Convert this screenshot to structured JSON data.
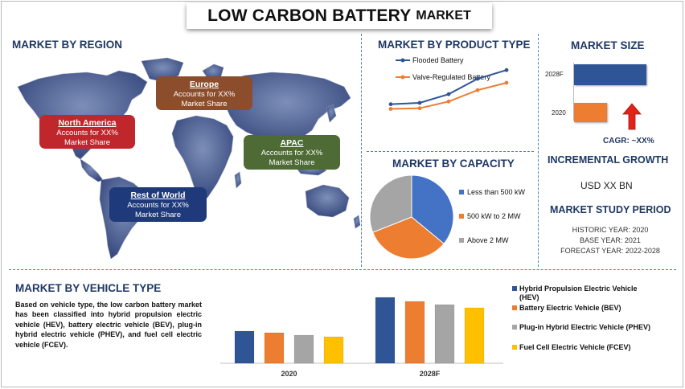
{
  "title": {
    "main": "LOW CARBON BATTERY",
    "sub": "MARKET"
  },
  "region": {
    "heading": "MARKET BY REGION",
    "boxes": [
      {
        "name": "Europe",
        "line1": "Accounts for XX%",
        "line2": "Market Share",
        "color": "#8b4d2b"
      },
      {
        "name": "North America",
        "line1": "Accounts for XX%",
        "line2": "Market Share",
        "color": "#c0272d"
      },
      {
        "name": "APAC",
        "line1": "Accounts for XX%",
        "line2": "Market Share",
        "color": "#4e6b35"
      },
      {
        "name": "Rest of World",
        "line1": "Accounts for XX%",
        "line2": "Market Share",
        "color": "#1f3a7a"
      }
    ]
  },
  "product": {
    "heading": "MARKET BY PRODUCT TYPE",
    "legend": [
      "Flooded Battery",
      "Valve-Regulated Battery"
    ]
  },
  "capacity": {
    "heading": "MARKET BY CAPACITY",
    "legend": [
      "Less than 500 kW",
      "500 kW to 2 MW",
      "Above 2 MW"
    ]
  },
  "size": {
    "heading": "MARKET SIZE",
    "label_2028": "2028F",
    "label_2020": "2020",
    "cagr": "CAGR:  ~XX%"
  },
  "growth": {
    "heading": "INCREMENTAL GROWTH",
    "value": "USD XX BN"
  },
  "study": {
    "heading": "MARKET STUDY PERIOD",
    "historic": "HISTORIC YEAR: 2020",
    "base": "BASE YEAR: 2021",
    "forecast": "FORECAST YEAR: 2022-2028"
  },
  "vehicle": {
    "heading": "MARKET BY VEHICLE TYPE",
    "paragraph": "Based on vehicle type, the low carbon battery market has been classified into hybrid propulsion electric vehicle (HEV), battery electric vehicle (BEV), plug-in hybrid electric vehicle (PHEV), and fuel cell electric vehicle (FCEV).",
    "legend": [
      "Hybrid Propulsion Electric Vehicle (HEV)",
      "Battery Electric Vehicle (BEV)",
      "Plug-in Hybrid Electric Vehicle (PHEV)",
      "Fuel Cell Electric Vehicle (FCEV)"
    ]
  },
  "chart_data": [
    {
      "type": "line",
      "x": [
        1,
        2,
        3,
        4,
        5
      ],
      "series": [
        {
          "name": "Flooded Battery",
          "values": [
            4.6,
            4.8,
            6.1,
            8.4,
            9.7
          ],
          "color": "#2f5597"
        },
        {
          "name": "Valve-Regulated Battery",
          "values": [
            3.9,
            4.0,
            5.0,
            6.7,
            7.8
          ],
          "color": "#ed7d31"
        }
      ],
      "ylim": [
        0,
        12
      ]
    },
    {
      "type": "pie",
      "labels": [
        "Less than 500 kW",
        "500 kW to 2 MW",
        "Above 2 MW"
      ],
      "values": [
        36,
        33,
        31
      ],
      "colors": [
        "#4472c4",
        "#ed7d31",
        "#a5a5a5"
      ]
    },
    {
      "type": "bar",
      "categories": [
        "2028F",
        "2020"
      ],
      "values": [
        100,
        45
      ],
      "colors": [
        "#2f5597",
        "#ed7d31"
      ]
    },
    {
      "type": "bar",
      "categories": [
        "2020",
        "2028F"
      ],
      "series": [
        {
          "name": "Hybrid Propulsion Electric Vehicle (HEV)",
          "values": [
            40,
            82
          ],
          "color": "#2f5597"
        },
        {
          "name": "Battery Electric Vehicle (BEV)",
          "values": [
            38,
            77
          ],
          "color": "#ed7d31"
        },
        {
          "name": "Plug-in Hybrid Electric Vehicle (PHEV)",
          "values": [
            35,
            73
          ],
          "color": "#a5a5a5"
        },
        {
          "name": "Fuel Cell Electric Vehicle (FCEV)",
          "values": [
            33,
            69
          ],
          "color": "#ffc000"
        }
      ],
      "ylim": [
        0,
        100
      ]
    }
  ]
}
